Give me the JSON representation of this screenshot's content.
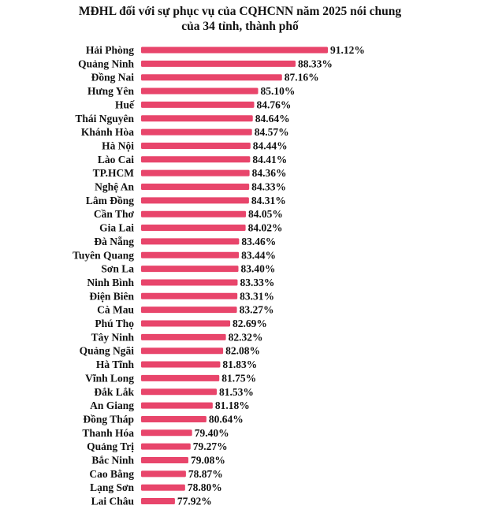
{
  "chart_data": {
    "type": "bar",
    "orientation": "horizontal",
    "title_lines": [
      "MĐHL đối với sự phục vụ của CQHCNN năm 2025 nói chung",
      "của 34 tỉnh, thành phố"
    ],
    "bar_color": "#e8456b",
    "xlim": [
      75,
      92
    ],
    "categories": [
      "Hải Phòng",
      "Quảng Ninh",
      "Đồng Nai",
      "Hưng Yên",
      "Huế",
      "Thái Nguyên",
      "Khánh Hòa",
      "Hà Nội",
      "Lào Cai",
      "TP.HCM",
      "Nghệ An",
      "Lâm Đồng",
      "Cần Thơ",
      "Gia Lai",
      "Đà Nẵng",
      "Tuyên Quang",
      "Sơn La",
      "Ninh Bình",
      "Điện Biên",
      "Cà Mau",
      "Phú Thọ",
      "Tây Ninh",
      "Quảng Ngãi",
      "Hà Tĩnh",
      "Vĩnh Long",
      "Đắk Lắk",
      "An Giang",
      "Đồng Tháp",
      "Thanh Hóa",
      "Quảng Trị",
      "Bắc Ninh",
      "Cao Bằng",
      "Lạng Sơn",
      "Lai Châu"
    ],
    "values": [
      91.12,
      88.33,
      87.16,
      85.1,
      84.76,
      84.64,
      84.57,
      84.44,
      84.41,
      84.36,
      84.33,
      84.31,
      84.05,
      84.02,
      83.46,
      83.44,
      83.4,
      83.33,
      83.31,
      83.27,
      82.69,
      82.32,
      82.08,
      81.83,
      81.75,
      81.53,
      81.18,
      80.64,
      79.4,
      79.27,
      79.08,
      78.87,
      78.8,
      77.92
    ],
    "value_labels": [
      "91.12%",
      "88.33%",
      "87.16%",
      "85.10%",
      "84.76%",
      "84.64%",
      "84.57%",
      "84.44%",
      "84.41%",
      "84.36%",
      "84.33%",
      "84.31%",
      "84.05%",
      "84.02%",
      "83.46%",
      "83.44%",
      "83.40%",
      "83.33%",
      "83.31%",
      "83.27%",
      "82.69%",
      "82.32%",
      "82.08%",
      "81.83%",
      "81.75%",
      "81.53%",
      "81.18%",
      "80.64%",
      "79.40%",
      "79.27%",
      "79.08%",
      "78.87%",
      "78.80%",
      "77.92%"
    ]
  }
}
